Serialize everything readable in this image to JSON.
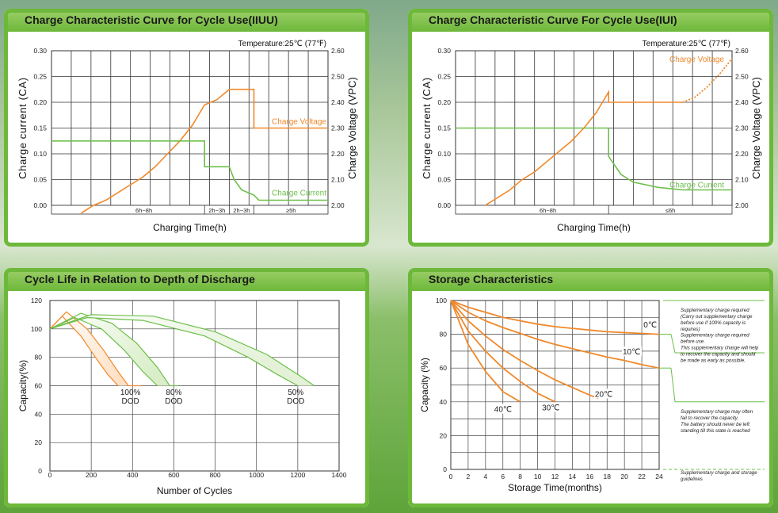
{
  "panels": [
    {
      "title": "Charge Characteristic Curve for Cycle Use(IIUU)"
    },
    {
      "title": "Charge Characteristic Curve For Cycle Use(IUI)"
    },
    {
      "title": "Cycle Life in Relation to Depth of Discharge"
    },
    {
      "title": "Storage Characteristics"
    }
  ],
  "chart_data": [
    {
      "type": "line",
      "title": "Charge Characteristic Curve for Cycle Use(IIUU)",
      "annotation": "Temperature:25℃ (77℉)",
      "xlabel": "Charging Time(h)",
      "ylabel": "Charge current (CA)",
      "y2label": "Charge Voltage (VPC)",
      "ylim": [
        0,
        0.3
      ],
      "y2lim": [
        2.0,
        2.6
      ],
      "yticks": [
        "0.00",
        "0.05",
        "0.10",
        "0.15",
        "0.20",
        "0.25",
        "0.30"
      ],
      "y2ticks": [
        "2.00",
        "2.10",
        "2.20",
        "2.30",
        "2.40",
        "2.50",
        "2.60"
      ],
      "x_phases": [
        "6h~8h",
        "2h~3h",
        "2h~3h",
        "≥5h"
      ],
      "x_phase_bounds": [
        0,
        5,
        6,
        7,
        10
      ],
      "grid": true,
      "series": [
        {
          "name": "Charge Voltage",
          "axis": "y2",
          "color": "#f0892b",
          "x": [
            0,
            0.5,
            1,
            1.5,
            2,
            2.5,
            3,
            3.5,
            4,
            4.5,
            5,
            5.5,
            6,
            6.5,
            7,
            7,
            10
          ],
          "y": [
            1.97,
            2.0,
            2.02,
            2.05,
            2.08,
            2.11,
            2.15,
            2.2,
            2.25,
            2.31,
            2.39,
            2.41,
            2.45,
            2.45,
            2.45,
            2.3,
            2.3
          ]
        },
        {
          "name": "Charge Current",
          "axis": "y",
          "color": "#6cbf4a",
          "x": [
            -1.2,
            5,
            5,
            6,
            6.2,
            6.5,
            7,
            7.1,
            7.2,
            10
          ],
          "y": [
            0.125,
            0.125,
            0.075,
            0.075,
            0.05,
            0.03,
            0.02,
            0.015,
            0.01,
            0.01
          ]
        }
      ]
    },
    {
      "type": "line",
      "title": "Charge Characteristic Curve For Cycle Use(IUI)",
      "annotation": "Temperature:25℃ (77℉)",
      "xlabel": "Charging Time(h)",
      "ylabel": "Charge current (CA)",
      "y2label": "Charge Voltage (VPC)",
      "ylim": [
        0,
        0.3
      ],
      "y2lim": [
        2.0,
        2.6
      ],
      "yticks": [
        "0.00",
        "0.05",
        "0.10",
        "0.15",
        "0.20",
        "0.25",
        "0.30"
      ],
      "y2ticks": [
        "2.00",
        "2.10",
        "2.20",
        "2.30",
        "2.40",
        "2.50",
        "2.60"
      ],
      "x_phases": [
        "6h~8h",
        "≤6h"
      ],
      "x_phase_bounds": [
        0,
        5,
        10
      ],
      "grid": true,
      "series": [
        {
          "name": "Charge Voltage",
          "axis": "y2",
          "color": "#f0892b",
          "x": [
            0,
            0.5,
            1,
            1.5,
            2,
            2.5,
            3,
            3.5,
            4,
            4.5,
            5,
            5,
            8,
            8.5,
            9,
            9.5,
            10
          ],
          "y": [
            2.0,
            2.03,
            2.06,
            2.1,
            2.13,
            2.17,
            2.21,
            2.25,
            2.3,
            2.36,
            2.44,
            2.4,
            2.4,
            2.42,
            2.46,
            2.51,
            2.57
          ]
        },
        {
          "name": "Charge Current",
          "axis": "y",
          "color": "#6cbf4a",
          "x": [
            -1.2,
            5,
            5,
            5.5,
            6,
            7,
            8,
            9,
            10
          ],
          "y": [
            0.15,
            0.15,
            0.095,
            0.06,
            0.045,
            0.035,
            0.03,
            0.03,
            0.03
          ]
        }
      ]
    },
    {
      "type": "area",
      "title": "Cycle Life in Relation to Depth of Discharge",
      "xlabel": "Number of Cycles",
      "ylabel": "Capacity(%)",
      "xlim": [
        0,
        1400
      ],
      "ylim": [
        0,
        120
      ],
      "xticks": [
        "0",
        "200",
        "400",
        "600",
        "800",
        "1000",
        "1200",
        "1400"
      ],
      "yticks": [
        "0",
        "20",
        "40",
        "60",
        "80",
        "100",
        "120"
      ],
      "grid": true,
      "series": [
        {
          "name": "100% DOD",
          "color": "#f0892b",
          "upper": {
            "x": [
              0,
              80,
              180,
              260,
              330,
              380,
              440
            ],
            "y": [
              100,
              112,
              100,
              85,
              70,
              60,
              60
            ]
          },
          "lower": {
            "x": [
              0,
              60,
              150,
              220,
              280,
              330
            ],
            "y": [
              100,
              109,
              95,
              80,
              68,
              60
            ]
          }
        },
        {
          "name": "80% DOD",
          "color": "#6cbf4a",
          "upper": {
            "x": [
              0,
              150,
              300,
              420,
              520,
              580,
              620
            ],
            "y": [
              100,
              111,
              104,
              90,
              73,
              60,
              60
            ]
          },
          "lower": {
            "x": [
              0,
              120,
              250,
              360,
              450,
              520
            ],
            "y": [
              100,
              108,
              100,
              85,
              70,
              60
            ]
          }
        },
        {
          "name": "50% DOD",
          "color": "#6cbf4a",
          "upper": {
            "x": [
              0,
              200,
              500,
              800,
              1050,
              1200,
              1280
            ],
            "y": [
              100,
              110,
              109,
              98,
              82,
              68,
              60
            ]
          },
          "lower": {
            "x": [
              0,
              180,
              450,
              750,
              960,
              1100,
              1200
            ],
            "y": [
              100,
              108,
              106,
              95,
              80,
              68,
              60
            ]
          }
        }
      ],
      "labels": [
        "100%",
        "DOD",
        "80%",
        "DOD",
        "50%",
        "DOD"
      ]
    },
    {
      "type": "line",
      "title": "Storage Characteristics",
      "xlabel": "Storage  Time(months)",
      "ylabel": "Capacity (%)",
      "xlim": [
        0,
        24
      ],
      "ylim": [
        0,
        100
      ],
      "xticks": [
        "0",
        "2",
        "4",
        "6",
        "8",
        "10",
        "12",
        "14",
        "16",
        "18",
        "20",
        "22",
        "24"
      ],
      "yticks": [
        "0",
        "20",
        "40",
        "60",
        "80",
        "100"
      ],
      "grid": true,
      "series": [
        {
          "name": "0℃",
          "color": "#f0892b",
          "x": [
            0,
            2,
            4,
            6,
            8,
            10,
            12,
            14,
            16,
            18,
            20,
            22,
            24
          ],
          "y": [
            100,
            96,
            93,
            90,
            88,
            86,
            84.5,
            83.5,
            82.5,
            81.5,
            81,
            80.5,
            80
          ]
        },
        {
          "name": "10℃",
          "color": "#f0892b",
          "x": [
            0,
            2,
            4,
            6,
            8,
            10,
            12,
            14,
            16,
            18,
            20,
            22,
            24
          ],
          "y": [
            100,
            93,
            88,
            84,
            80.5,
            77,
            74,
            71.5,
            69,
            66.5,
            64.5,
            62,
            60
          ]
        },
        {
          "name": "20℃",
          "color": "#f0892b",
          "x": [
            0,
            2,
            4,
            6,
            8,
            10,
            12,
            14,
            16,
            17
          ],
          "y": [
            100,
            88,
            79,
            71,
            64.5,
            58.5,
            53,
            48.5,
            44,
            42
          ]
        },
        {
          "name": "30℃",
          "color": "#f0892b",
          "x": [
            0,
            2,
            4,
            6,
            8,
            10,
            12
          ],
          "y": [
            100,
            82,
            70,
            60,
            52,
            45,
            40
          ]
        },
        {
          "name": "40℃",
          "color": "#f0892b",
          "x": [
            0,
            2,
            4,
            6,
            8
          ],
          "y": [
            100,
            74,
            58,
            46,
            40
          ]
        }
      ],
      "series_labels": [
        "0℃",
        "10℃",
        "20℃",
        "30℃",
        "40℃"
      ],
      "notes": [
        "Supplementary charge required",
        "(Carry out supplementary charge",
        "before use if 100% capacity is",
        "requires)",
        "Supplementary charge required",
        "before use.",
        "This supplementary charge will help",
        "to recover the capacity and should",
        "be made  as early as possible.",
        "Supplementary charge may often",
        "fail to recover the capacity.",
        "The battery should never be left",
        "standing till this state is reached",
        "Supplementary charge and storage",
        "guidelines"
      ]
    }
  ]
}
